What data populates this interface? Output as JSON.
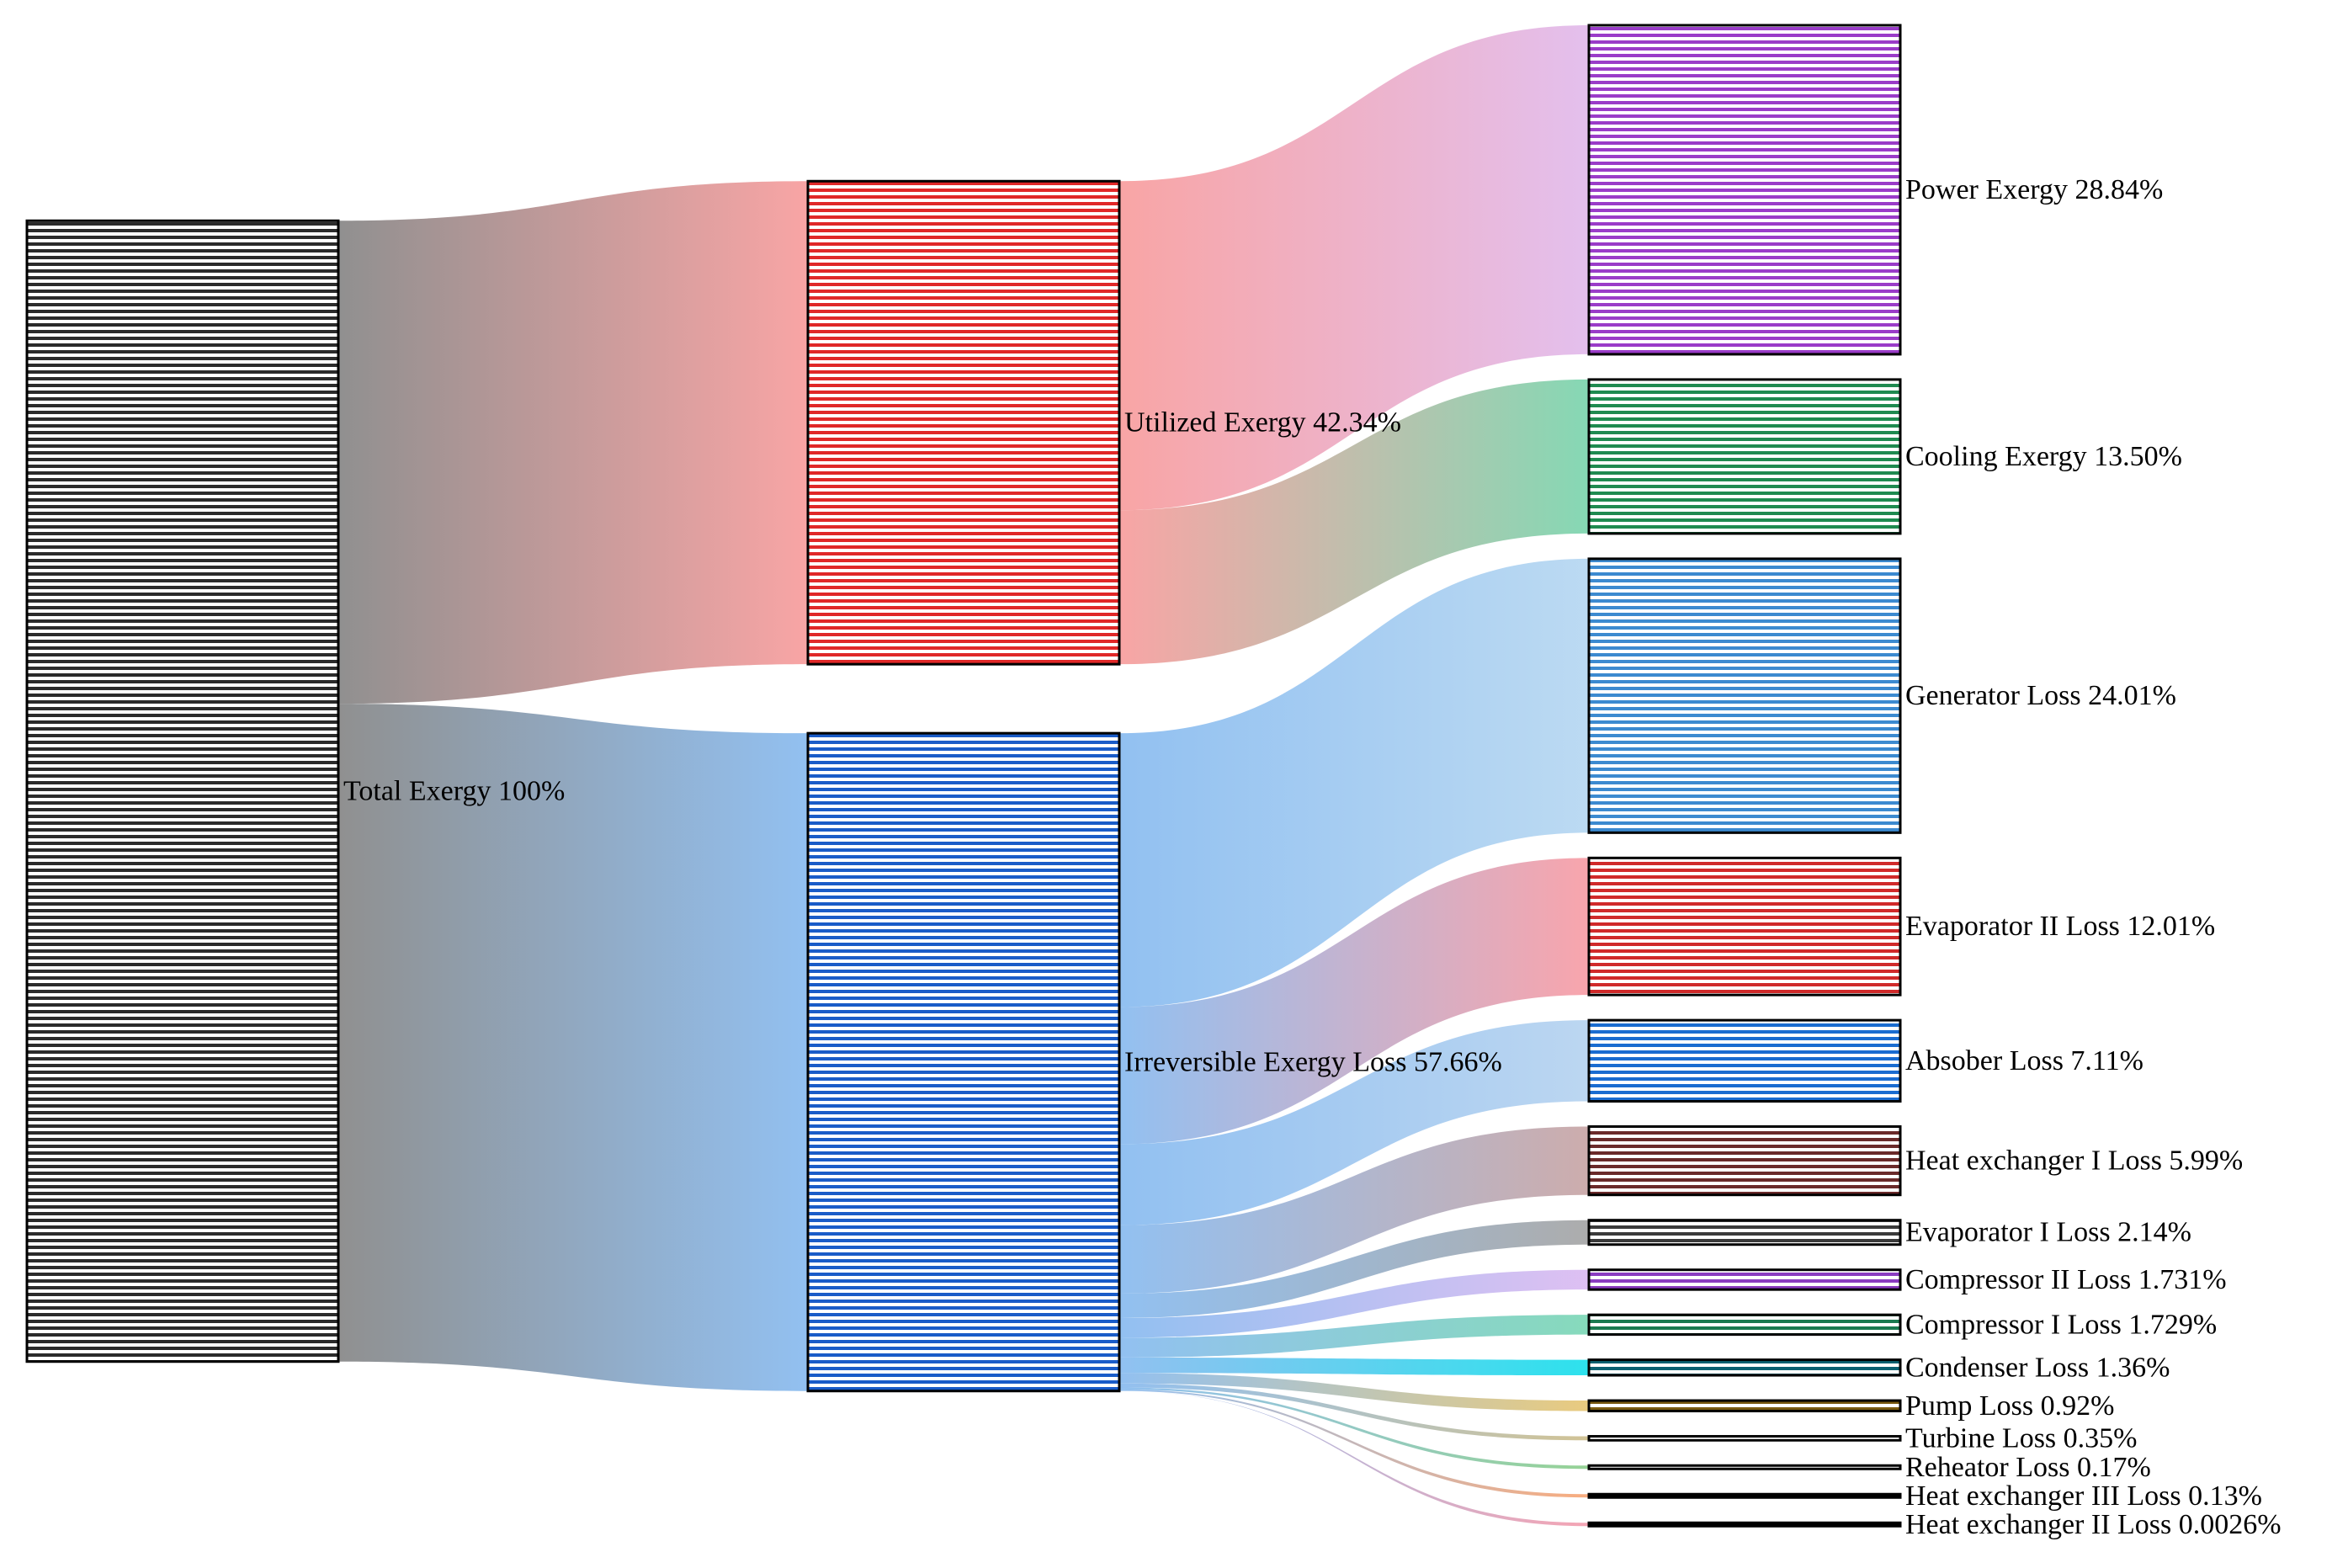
{
  "chart_data": {
    "type": "sankey",
    "title": "",
    "units": "%",
    "columns": [
      [
        "total"
      ],
      [
        "utilized",
        "irreversible"
      ],
      [
        "power",
        "cooling",
        "generator",
        "evap2",
        "absorber",
        "hx1",
        "evap1",
        "comp2",
        "comp1",
        "condenser",
        "pump",
        "turbine",
        "reheater",
        "hx3",
        "hx2"
      ]
    ],
    "nodes": [
      {
        "id": "total",
        "label": "Total Exergy 100%",
        "value": 100,
        "color": "#8a8a8a",
        "pattern_color": "#2b2b2b"
      },
      {
        "id": "utilized",
        "label": "Utilized Exergy 42.34%",
        "value": 42.34,
        "color": "#f8a0a0",
        "pattern_color": "#e02828"
      },
      {
        "id": "irreversible",
        "label": "Irreversible Exergy Loss 57.66%",
        "value": 57.66,
        "color": "#8cbdf0",
        "pattern_color": "#1a5cc8"
      },
      {
        "id": "power",
        "label": "Power Exergy 28.84%",
        "value": 28.84,
        "color": "#e2bcec",
        "pattern_color": "#9a3cc8"
      },
      {
        "id": "cooling",
        "label": "Cooling Exergy 13.50%",
        "value": 13.5,
        "color": "#7fd6b0",
        "pattern_color": "#1f8a50"
      },
      {
        "id": "generator",
        "label": "Generator Loss 24.01%",
        "value": 24.01,
        "color": "#b8d8f2",
        "pattern_color": "#3c8ad0"
      },
      {
        "id": "evap2",
        "label": "Evaporator II Loss 12.01%",
        "value": 12.01,
        "color": "#f8a0a8",
        "pattern_color": "#d02a2a"
      },
      {
        "id": "absorber",
        "label": "Absober Loss 7.11%",
        "value": 7.11,
        "color": "#b8d4f0",
        "pattern_color": "#1a6cd0"
      },
      {
        "id": "hx1",
        "label": "Heat exchanger I Loss 5.99%",
        "value": 5.99,
        "color": "#caa8a8",
        "pattern_color": "#6a2a2a"
      },
      {
        "id": "evap1",
        "label": "Evaporator I Loss 2.14%",
        "value": 2.14,
        "color": "#a8a8a8",
        "pattern_color": "#3a3a3a"
      },
      {
        "id": "comp2",
        "label": "Compressor II Loss 1.731%",
        "value": 1.731,
        "color": "#dcbcf2",
        "pattern_color": "#8a3cc0"
      },
      {
        "id": "comp1",
        "label": "Compressor I Loss 1.729%",
        "value": 1.729,
        "color": "#80d8b8",
        "pattern_color": "#1a7a50"
      },
      {
        "id": "condenser",
        "label": "Condenser Loss 1.36%",
        "value": 1.36,
        "color": "#22e0ec",
        "pattern_color": "#0a6070"
      },
      {
        "id": "pump",
        "label": "Pump Loss 0.92%",
        "value": 0.92,
        "color": "#e8c878",
        "pattern_color": "#7a5a10"
      },
      {
        "id": "turbine",
        "label": "Turbine Loss 0.35%",
        "value": 0.35,
        "color": "#cfc090",
        "pattern_color": "#5a4a20"
      },
      {
        "id": "reheater",
        "label": "Reheator Loss 0.17%",
        "value": 0.17,
        "color": "#90d090",
        "pattern_color": "#000000"
      },
      {
        "id": "hx3",
        "label": "Heat exchanger III Loss 0.13%",
        "value": 0.13,
        "color": "#f8a878",
        "pattern_color": "#000000"
      },
      {
        "id": "hx2",
        "label": "Heat exchanger II Loss 0.0026%",
        "value": 0.0026,
        "color": "#f4a0b0",
        "pattern_color": "#000000"
      }
    ],
    "links": [
      {
        "source": "total",
        "target": "utilized",
        "value": 42.34
      },
      {
        "source": "total",
        "target": "irreversible",
        "value": 57.66
      },
      {
        "source": "utilized",
        "target": "power",
        "value": 28.84
      },
      {
        "source": "utilized",
        "target": "cooling",
        "value": 13.5
      },
      {
        "source": "irreversible",
        "target": "generator",
        "value": 24.01
      },
      {
        "source": "irreversible",
        "target": "evap2",
        "value": 12.01
      },
      {
        "source": "irreversible",
        "target": "absorber",
        "value": 7.11
      },
      {
        "source": "irreversible",
        "target": "hx1",
        "value": 5.99
      },
      {
        "source": "irreversible",
        "target": "evap1",
        "value": 2.14
      },
      {
        "source": "irreversible",
        "target": "comp2",
        "value": 1.731
      },
      {
        "source": "irreversible",
        "target": "comp1",
        "value": 1.729
      },
      {
        "source": "irreversible",
        "target": "condenser",
        "value": 1.36
      },
      {
        "source": "irreversible",
        "target": "pump",
        "value": 0.92
      },
      {
        "source": "irreversible",
        "target": "turbine",
        "value": 0.35
      },
      {
        "source": "irreversible",
        "target": "reheater",
        "value": 0.17
      },
      {
        "source": "irreversible",
        "target": "hx3",
        "value": 0.13
      },
      {
        "source": "irreversible",
        "target": "hx2",
        "value": 0.0026
      }
    ]
  }
}
